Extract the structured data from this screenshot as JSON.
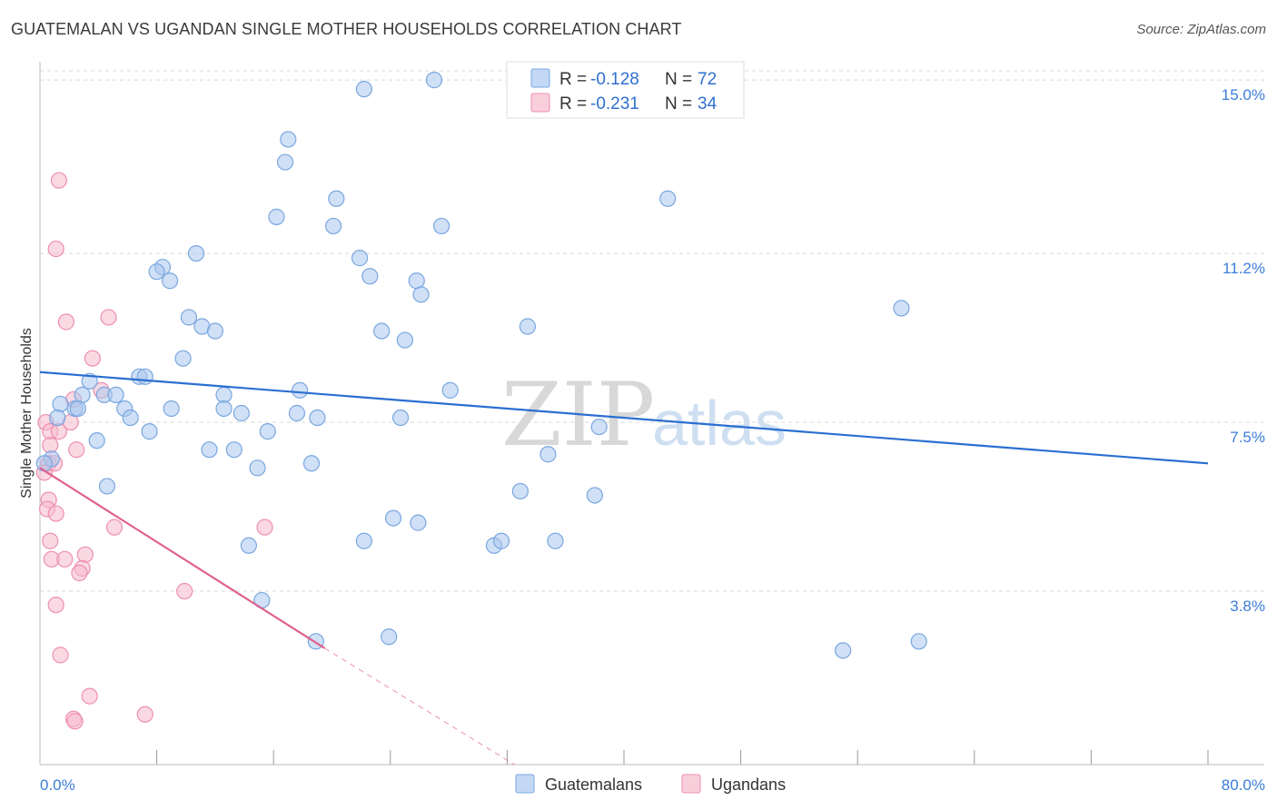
{
  "title": "GUATEMALAN VS UGANDAN SINGLE MOTHER HOUSEHOLDS CORRELATION CHART",
  "source": "Source: ZipAtlas.com",
  "watermark": {
    "zip": "ZIP",
    "atlas": "atlas"
  },
  "colors": {
    "blue_fill": "#a9c7ef",
    "blue_stroke": "#7aa7e0",
    "blue_line": "#2a6fd1",
    "pink_fill": "#f6b9cc",
    "pink_stroke": "#ee8fb0",
    "pink_line": "#e0618d",
    "grid": "#d9d9d9",
    "tick_text": "#3b7dd8"
  },
  "legend": {
    "rows": [
      {
        "r_label": "R =",
        "r_value": "-0.128",
        "n_label": "N =",
        "n_value": "72"
      },
      {
        "r_label": "R =",
        "r_value": "-0.231",
        "n_label": "N =",
        "n_value": "34"
      }
    ]
  },
  "chart_data": {
    "type": "scatter",
    "title": "GUATEMALAN VS UGANDAN SINGLE MOTHER HOUSEHOLDS CORRELATION CHART",
    "xlabel": "",
    "ylabel": "Single Mother Households",
    "xlim": [
      0,
      80
    ],
    "ylim": [
      0,
      15.4
    ],
    "x_tick_labels": [
      "0.0%",
      "80.0%"
    ],
    "y_ticks": [
      3.8,
      7.5,
      11.2,
      15.0
    ],
    "y_tick_labels": [
      "3.8%",
      "7.5%",
      "11.2%",
      "15.0%"
    ],
    "grid": true,
    "legend_position": "bottom",
    "series": [
      {
        "name": "Guatemalans",
        "trend": {
          "x": [
            0,
            80
          ],
          "y": [
            8.6,
            6.6
          ]
        },
        "points": [
          [
            27.0,
            15.0
          ],
          [
            22.2,
            14.8
          ],
          [
            17.0,
            13.7
          ],
          [
            16.8,
            13.2
          ],
          [
            20.3,
            12.4
          ],
          [
            43.0,
            12.4
          ],
          [
            16.2,
            12.0
          ],
          [
            20.1,
            11.8
          ],
          [
            27.5,
            11.8
          ],
          [
            10.7,
            11.2
          ],
          [
            21.9,
            11.1
          ],
          [
            8.4,
            10.9
          ],
          [
            8.0,
            10.8
          ],
          [
            22.6,
            10.7
          ],
          [
            8.9,
            10.6
          ],
          [
            25.8,
            10.6
          ],
          [
            26.1,
            10.3
          ],
          [
            59.0,
            10.0
          ],
          [
            10.2,
            9.8
          ],
          [
            11.1,
            9.6
          ],
          [
            12.0,
            9.5
          ],
          [
            23.4,
            9.5
          ],
          [
            33.4,
            9.6
          ],
          [
            25.0,
            9.3
          ],
          [
            9.8,
            8.9
          ],
          [
            6.8,
            8.5
          ],
          [
            7.2,
            8.5
          ],
          [
            3.4,
            8.4
          ],
          [
            17.8,
            8.2
          ],
          [
            28.1,
            8.2
          ],
          [
            4.4,
            8.1
          ],
          [
            12.6,
            8.1
          ],
          [
            2.9,
            8.1
          ],
          [
            5.2,
            8.1
          ],
          [
            1.4,
            7.9
          ],
          [
            2.4,
            7.8
          ],
          [
            5.8,
            7.8
          ],
          [
            9.0,
            7.8
          ],
          [
            12.6,
            7.8
          ],
          [
            13.8,
            7.7
          ],
          [
            17.6,
            7.7
          ],
          [
            2.6,
            7.8
          ],
          [
            1.2,
            7.6
          ],
          [
            6.2,
            7.6
          ],
          [
            19.0,
            7.6
          ],
          [
            24.7,
            7.6
          ],
          [
            7.5,
            7.3
          ],
          [
            15.6,
            7.3
          ],
          [
            38.3,
            7.4
          ],
          [
            3.9,
            7.1
          ],
          [
            11.6,
            6.9
          ],
          [
            13.3,
            6.9
          ],
          [
            34.8,
            6.8
          ],
          [
            0.8,
            6.7
          ],
          [
            0.3,
            6.6
          ],
          [
            18.6,
            6.6
          ],
          [
            14.9,
            6.5
          ],
          [
            4.6,
            6.1
          ],
          [
            32.9,
            5.99
          ],
          [
            38.0,
            5.9
          ],
          [
            24.2,
            5.4
          ],
          [
            25.9,
            5.3
          ],
          [
            22.2,
            4.9
          ],
          [
            35.3,
            4.9
          ],
          [
            31.1,
            4.8
          ],
          [
            31.6,
            4.9
          ],
          [
            14.3,
            4.8
          ],
          [
            15.2,
            3.6
          ],
          [
            18.9,
            2.7
          ],
          [
            23.9,
            2.8
          ],
          [
            55.0,
            2.5
          ],
          [
            60.2,
            2.7
          ]
        ]
      },
      {
        "name": "Ugandans",
        "trend": {
          "x": [
            0,
            19.5
          ],
          "y": [
            6.5,
            2.55
          ]
        },
        "trend_dashed": {
          "x": [
            19.5,
            32.5
          ],
          "y": [
            2.55,
            0.0
          ]
        },
        "points": [
          [
            1.3,
            12.8
          ],
          [
            1.1,
            11.3
          ],
          [
            4.7,
            9.8
          ],
          [
            1.8,
            9.7
          ],
          [
            3.6,
            8.9
          ],
          [
            4.2,
            8.2
          ],
          [
            2.3,
            8.0
          ],
          [
            0.4,
            7.5
          ],
          [
            0.7,
            7.3
          ],
          [
            1.3,
            7.3
          ],
          [
            2.1,
            7.5
          ],
          [
            0.7,
            7.0
          ],
          [
            2.5,
            6.9
          ],
          [
            0.6,
            6.6
          ],
          [
            1.0,
            6.6
          ],
          [
            0.3,
            6.4
          ],
          [
            0.6,
            5.8
          ],
          [
            0.5,
            5.6
          ],
          [
            1.1,
            5.5
          ],
          [
            5.1,
            5.2
          ],
          [
            15.4,
            5.2
          ],
          [
            0.7,
            4.9
          ],
          [
            3.1,
            4.6
          ],
          [
            0.8,
            4.5
          ],
          [
            1.7,
            4.5
          ],
          [
            2.9,
            4.3
          ],
          [
            2.7,
            4.2
          ],
          [
            9.9,
            3.8
          ],
          [
            1.1,
            3.5
          ],
          [
            1.4,
            2.4
          ],
          [
            3.4,
            1.5
          ],
          [
            7.2,
            1.1
          ],
          [
            2.3,
            1.0
          ],
          [
            2.4,
            0.95
          ]
        ]
      }
    ]
  }
}
